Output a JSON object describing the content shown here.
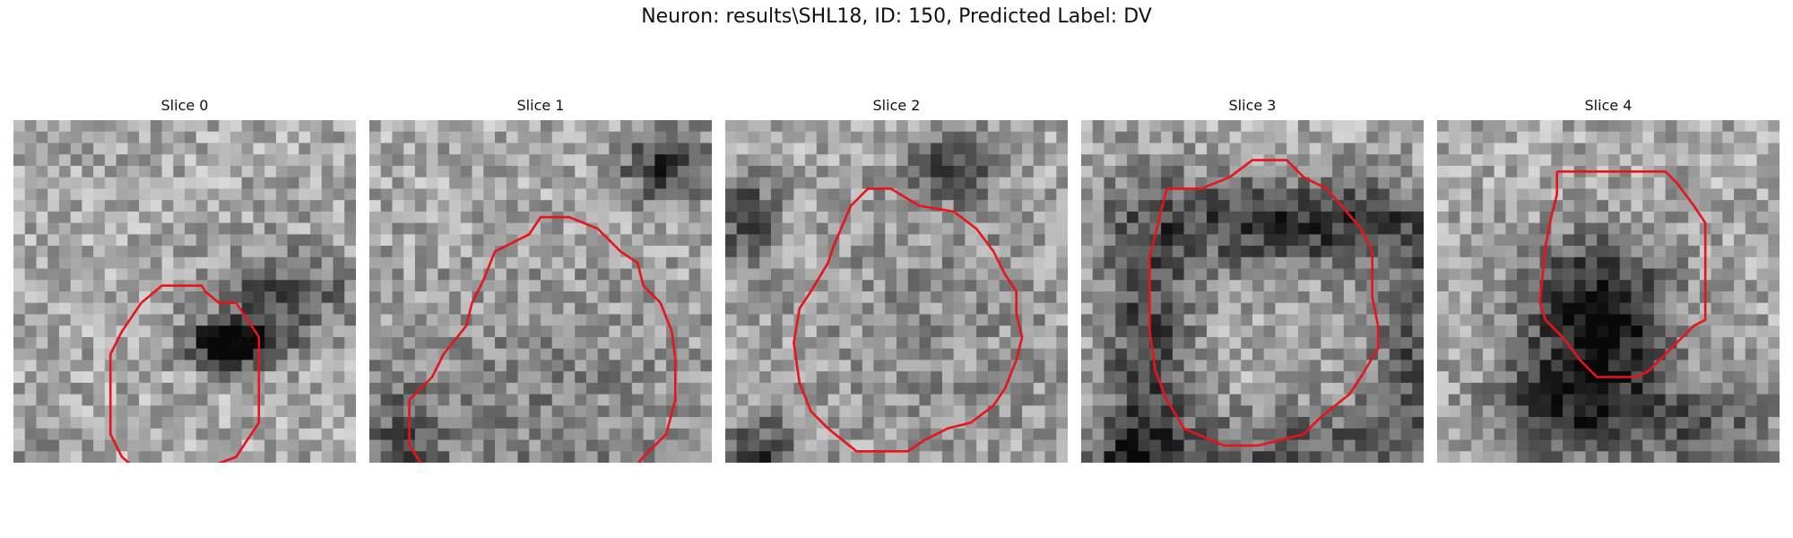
{
  "figure": {
    "title": "Neuron: results\\SHL18, ID: 150, Predicted Label: DV"
  },
  "panels": [
    {
      "title": "Slice 0"
    },
    {
      "title": "Slice 1"
    },
    {
      "title": "Slice 2"
    },
    {
      "title": "Slice 3"
    },
    {
      "title": "Slice 4"
    }
  ],
  "colors": {
    "contour": "#e8141a",
    "image_cmap": "grayscale"
  }
}
